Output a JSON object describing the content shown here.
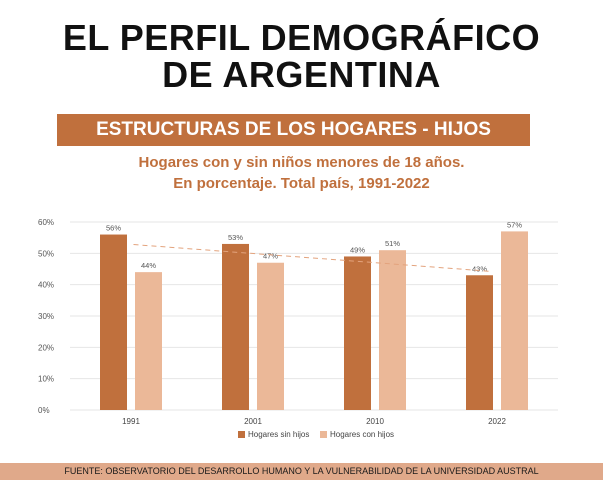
{
  "header": {
    "title_line1": "EL PERFIL DEMOGRÁFICO",
    "title_line2": "DE ARGENTINA",
    "banner": "ESTRUCTURAS DE LOS HOGARES - HIJOS",
    "subtitle_line1": "Hogares con y sin niños menores de 18 años.",
    "subtitle_line2": "En porcentaje. Total país, 1991-2022"
  },
  "colors": {
    "accent": "#c0703d",
    "series_sin": "#c0703d",
    "series_con": "#ebb898",
    "footer_bg": "#e0a98a"
  },
  "chart_data": {
    "type": "bar",
    "categories": [
      "1991",
      "2001",
      "2010",
      "2022"
    ],
    "series": [
      {
        "name": "Hogares sin hijos",
        "values": [
          56,
          53,
          49,
          43
        ],
        "labels": [
          "56%",
          "53%",
          "49%",
          "43%"
        ]
      },
      {
        "name": "Hogares con hijos",
        "values": [
          44,
          47,
          51,
          57
        ],
        "labels": [
          "44%",
          "47%",
          "51%",
          "57%"
        ]
      }
    ],
    "trendline": {
      "series": "Hogares sin hijos",
      "style": "dashed"
    },
    "yticks": [
      0,
      10,
      20,
      30,
      40,
      50,
      60
    ],
    "ytick_labels": [
      "0%",
      "10%",
      "20%",
      "30%",
      "40%",
      "50%",
      "60%"
    ],
    "ylim": [
      0,
      60
    ],
    "grid": true,
    "legend": "bottom"
  },
  "footer": {
    "source": "FUENTE: OBSERVATORIO DEL DESARROLLO HUMANO Y LA VULNERABILIDAD DE LA UNIVERSIDAD AUSTRAL"
  }
}
